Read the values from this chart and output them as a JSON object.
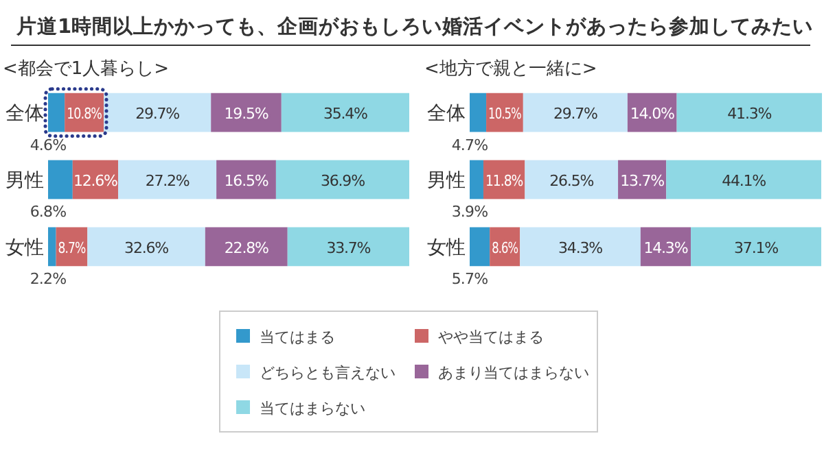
{
  "chart_data": [
    {
      "type": "bar",
      "orientation": "horizontal",
      "stacked": true,
      "title": "片道1時間以上かかっても、企画がおもしろい婚活イベントがあったら参加してみたい",
      "subtitle": "<都会で1人暮らし>",
      "categories": [
        "全体",
        "男性",
        "女性"
      ],
      "xlim": [
        0,
        100
      ],
      "tick_labels": "y",
      "legend": "bottom",
      "series": [
        {
          "name": "当てはまる",
          "color": "#3399cc",
          "values": [
            4.6,
            6.8,
            2.2
          ],
          "value_labels": [
            "4.6%",
            "6.8%",
            "2.2%"
          ]
        },
        {
          "name": "やや当てはまる",
          "color": "#cc6666",
          "values": [
            10.8,
            12.6,
            8.7
          ],
          "value_labels": [
            "10.8%",
            "12.6%",
            "8.7%"
          ]
        },
        {
          "name": "どちらとも言えない",
          "color": "#c8e6f8",
          "values": [
            29.7,
            27.2,
            32.6
          ],
          "value_labels": [
            "29.7%",
            "27.2%",
            "32.6%"
          ]
        },
        {
          "name": "あまり当てはまらない",
          "color": "#996699",
          "values": [
            19.5,
            16.5,
            22.8
          ],
          "value_labels": [
            "19.5%",
            "16.5%",
            "22.8%"
          ]
        },
        {
          "name": "当てはまらない",
          "color": "#8fd8e4",
          "values": [
            35.4,
            36.9,
            33.7
          ],
          "value_labels": [
            "35.4%",
            "36.9%",
            "33.7%"
          ]
        }
      ]
    },
    {
      "type": "bar",
      "orientation": "horizontal",
      "stacked": true,
      "subtitle": "<地方で親と一緒に>",
      "categories": [
        "全体",
        "男性",
        "女性"
      ],
      "xlim": [
        0,
        100
      ],
      "tick_labels": "y",
      "legend": "bottom",
      "series": [
        {
          "name": "当てはまる",
          "color": "#3399cc",
          "values": [
            4.7,
            3.9,
            5.7
          ],
          "value_labels": [
            "4.7%",
            "3.9%",
            "5.7%"
          ]
        },
        {
          "name": "やや当てはまる",
          "color": "#cc6666",
          "values": [
            10.5,
            11.8,
            8.6
          ],
          "value_labels": [
            "10.5%",
            "11.8%",
            "8.6%"
          ]
        },
        {
          "name": "どちらとも言えない",
          "color": "#c8e6f8",
          "values": [
            29.7,
            26.5,
            34.3
          ],
          "value_labels": [
            "29.7%",
            "26.5%",
            "34.3%"
          ]
        },
        {
          "name": "あまり当てはまらない",
          "color": "#996699",
          "values": [
            14.0,
            13.7,
            14.3
          ],
          "value_labels": [
            "14.0%",
            "13.7%",
            "14.3%"
          ]
        },
        {
          "name": "当てはまらない",
          "color": "#8fd8e4",
          "values": [
            41.3,
            44.1,
            37.1
          ],
          "value_labels": [
            "41.3%",
            "44.1%",
            "37.1%"
          ]
        }
      ]
    }
  ]
}
